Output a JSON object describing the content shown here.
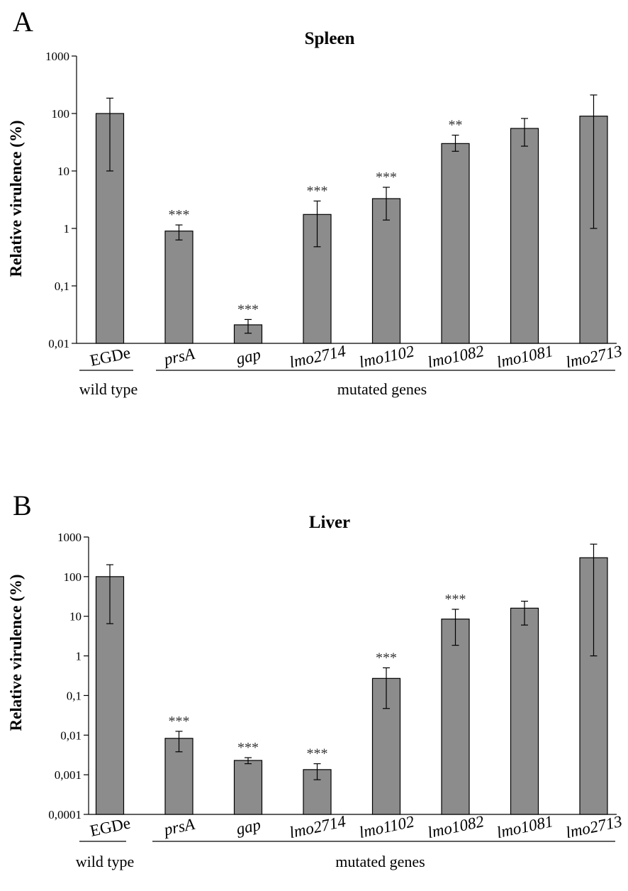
{
  "colors": {
    "bar_fill": "#8c8c8c",
    "axis": "#000000",
    "text": "#000000"
  },
  "chart_data": [
    {
      "type": "bar",
      "panel_label": "A",
      "title": "Spleen",
      "ylabel": "Relative virulence (%)",
      "xlabel": "",
      "yscale": "log",
      "ylim": [
        0.01,
        1000
      ],
      "ytick_labels": [
        "0,01",
        "0,1",
        "1",
        "10",
        "100",
        "1000"
      ],
      "categories": [
        "EGDe",
        "prsA",
        "gap",
        "lmo2714",
        "lmo1102",
        "lmo1082",
        "lmo1081",
        "lmo2713"
      ],
      "italic_categories": [
        false,
        true,
        true,
        true,
        true,
        true,
        true,
        true
      ],
      "values": [
        100,
        0.9,
        0.021,
        1.75,
        3.3,
        30,
        55,
        90
      ],
      "error_low": [
        10,
        0.63,
        0.015,
        0.48,
        1.4,
        22,
        27,
        1.0
      ],
      "error_high": [
        185,
        1.15,
        0.026,
        3.0,
        5.2,
        42,
        82,
        210
      ],
      "significance": [
        "",
        "***",
        "***",
        "***",
        "***",
        "**",
        "",
        ""
      ],
      "groups": [
        {
          "label": "wild type",
          "from": 0,
          "to": 0
        },
        {
          "label": "mutated genes",
          "from": 1,
          "to": 7
        }
      ]
    },
    {
      "type": "bar",
      "panel_label": "B",
      "title": "Liver",
      "ylabel": "Relative virulence (%)",
      "xlabel": "",
      "yscale": "log",
      "ylim": [
        0.0001,
        1000
      ],
      "ytick_labels": [
        "0,0001",
        "0,001",
        "0,01",
        "0,1",
        "1",
        "10",
        "100",
        "1000"
      ],
      "categories": [
        "EGDe",
        "prsA",
        "gap",
        "lmo2714",
        "lmo1102",
        "lmo1082",
        "lmo1081",
        "lmo2713"
      ],
      "italic_categories": [
        false,
        true,
        true,
        true,
        true,
        true,
        true,
        true
      ],
      "values": [
        100,
        0.0083,
        0.0023,
        0.00135,
        0.27,
        8.5,
        16,
        300
      ],
      "error_low": [
        6.5,
        0.0038,
        0.0019,
        0.00075,
        0.047,
        1.85,
        6.0,
        1.0
      ],
      "error_high": [
        200,
        0.0125,
        0.0027,
        0.0019,
        0.5,
        15,
        24,
        660
      ],
      "significance": [
        "",
        "***",
        "***",
        "***",
        "***",
        "***",
        "",
        ""
      ],
      "groups": [
        {
          "label": "wild type",
          "from": 0,
          "to": 0
        },
        {
          "label": "mutated genes",
          "from": 1,
          "to": 7
        }
      ]
    }
  ]
}
